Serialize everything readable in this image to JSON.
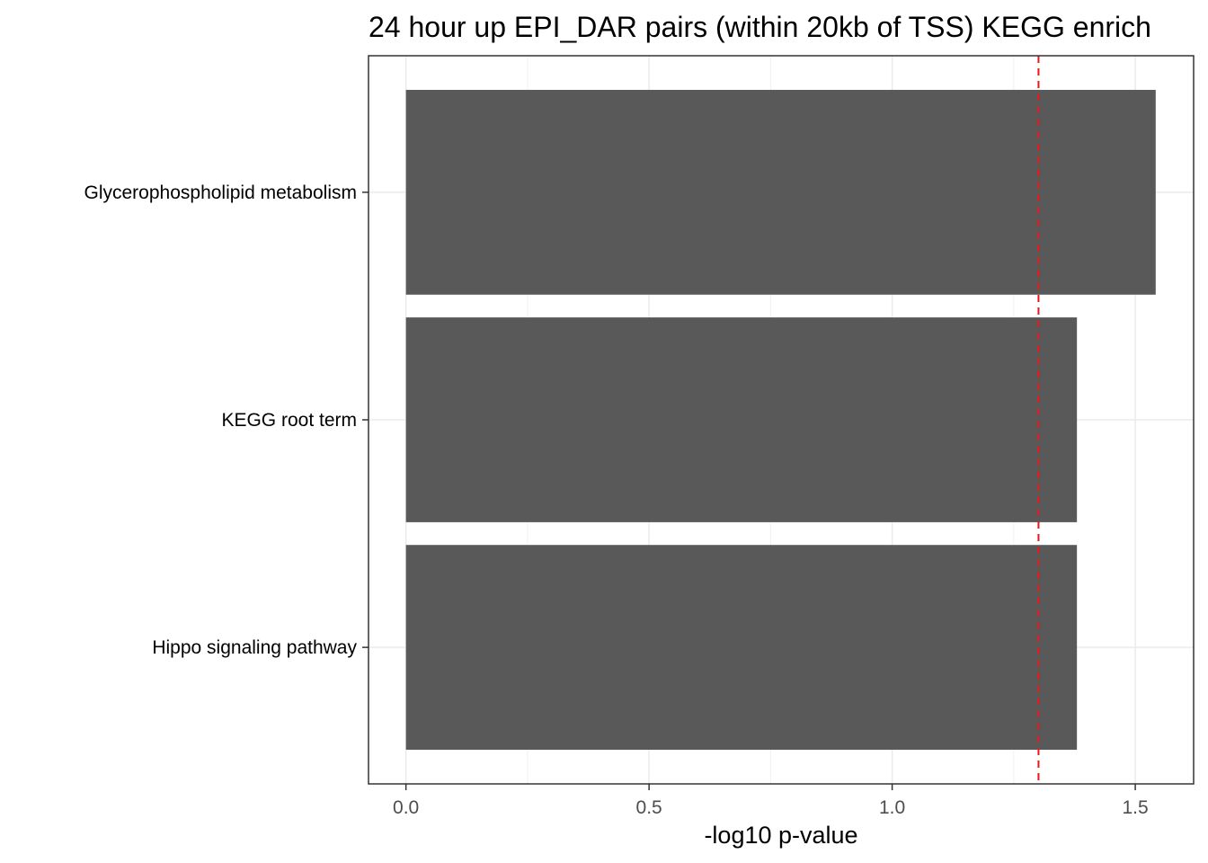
{
  "chart_data": {
    "type": "bar",
    "orientation": "horizontal",
    "title": "24 hour up EPI_DAR pairs (within 20kb of TSS) KEGG enrich",
    "xlabel": "-log10 p-value",
    "ylabel": "",
    "categories": [
      "Glycerophospholipid metabolism",
      "KEGG root term",
      "Hippo signaling pathway"
    ],
    "values": [
      1.542,
      1.38,
      1.38
    ],
    "xlim": [
      -0.077,
      1.62
    ],
    "xticks": [
      0.0,
      0.5,
      1.0,
      1.5
    ],
    "xtick_labels": [
      "0.0",
      "0.5",
      "1.0",
      "1.5"
    ],
    "reference_line": {
      "x": 1.301,
      "style": "dashed",
      "color": "#e41a1c"
    },
    "bar_color": "#595959",
    "grid": true,
    "legend": "none"
  }
}
